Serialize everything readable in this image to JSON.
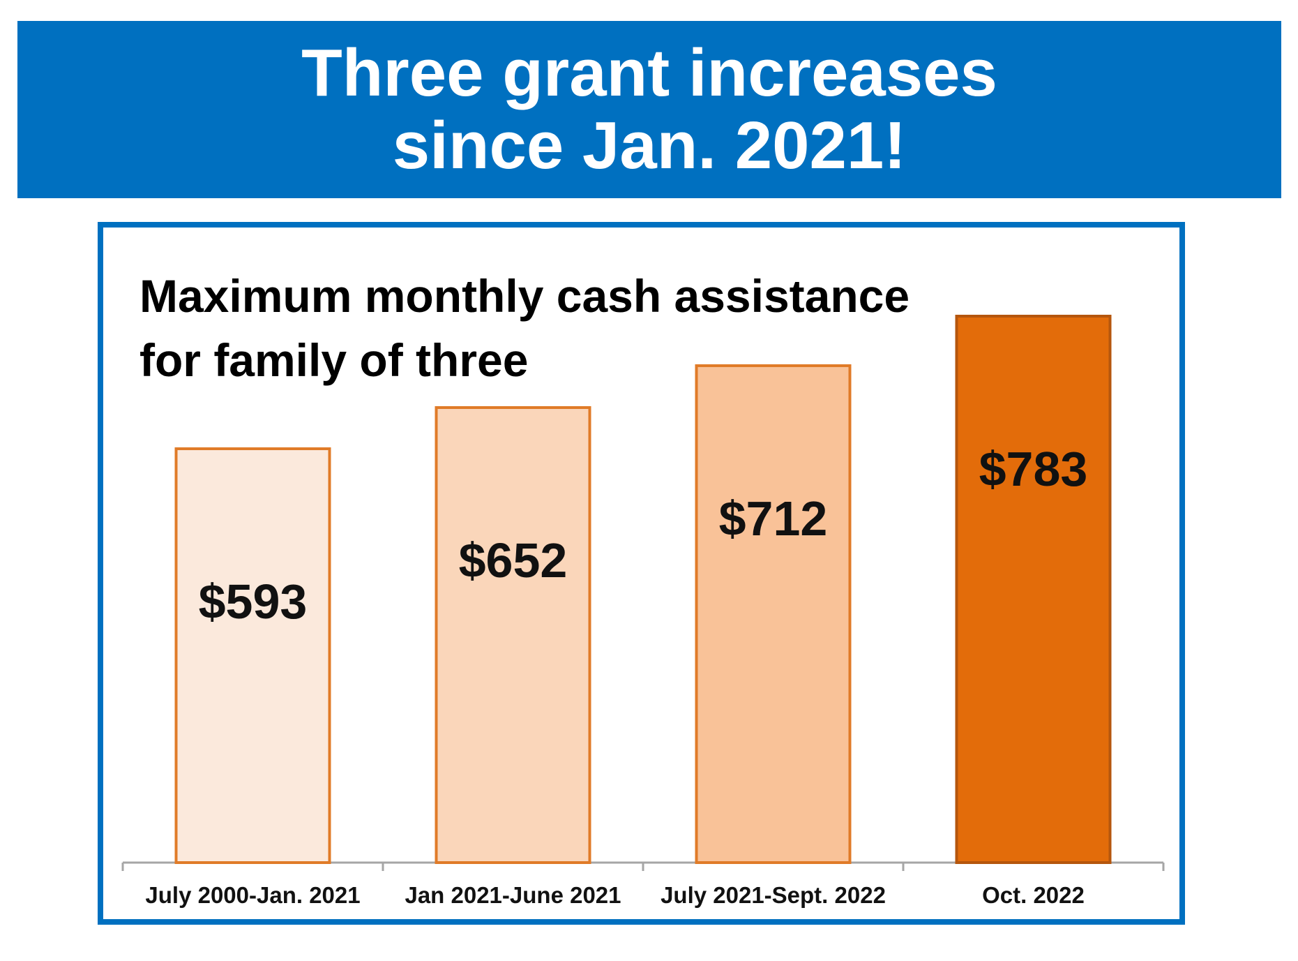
{
  "banner": {
    "line1": "Three grant increases",
    "line2": "since Jan. 2021!"
  },
  "chart_data": {
    "type": "bar",
    "title_line1": "Maximum monthly cash assistance",
    "title_line2": "for family of three",
    "categories": [
      "July 2000-Jan. 2021",
      "Jan 2021-June 2021",
      "July 2021-Sept. 2022",
      "Oct. 2022"
    ],
    "values": [
      593,
      652,
      712,
      783
    ],
    "data_labels": [
      "$593",
      "$652",
      "$712",
      "$783"
    ],
    "xlabel": "",
    "ylabel": "",
    "ylim": [
      0,
      800
    ],
    "grid": false,
    "colors": {
      "fills": [
        "#fbe9dc",
        "#fad6ba",
        "#f9c298",
        "#e36c0a"
      ],
      "outline": "#e07b28",
      "outline_last": "#b5560d",
      "axis": "#a6a6a6",
      "frame": "#0070c0"
    }
  }
}
